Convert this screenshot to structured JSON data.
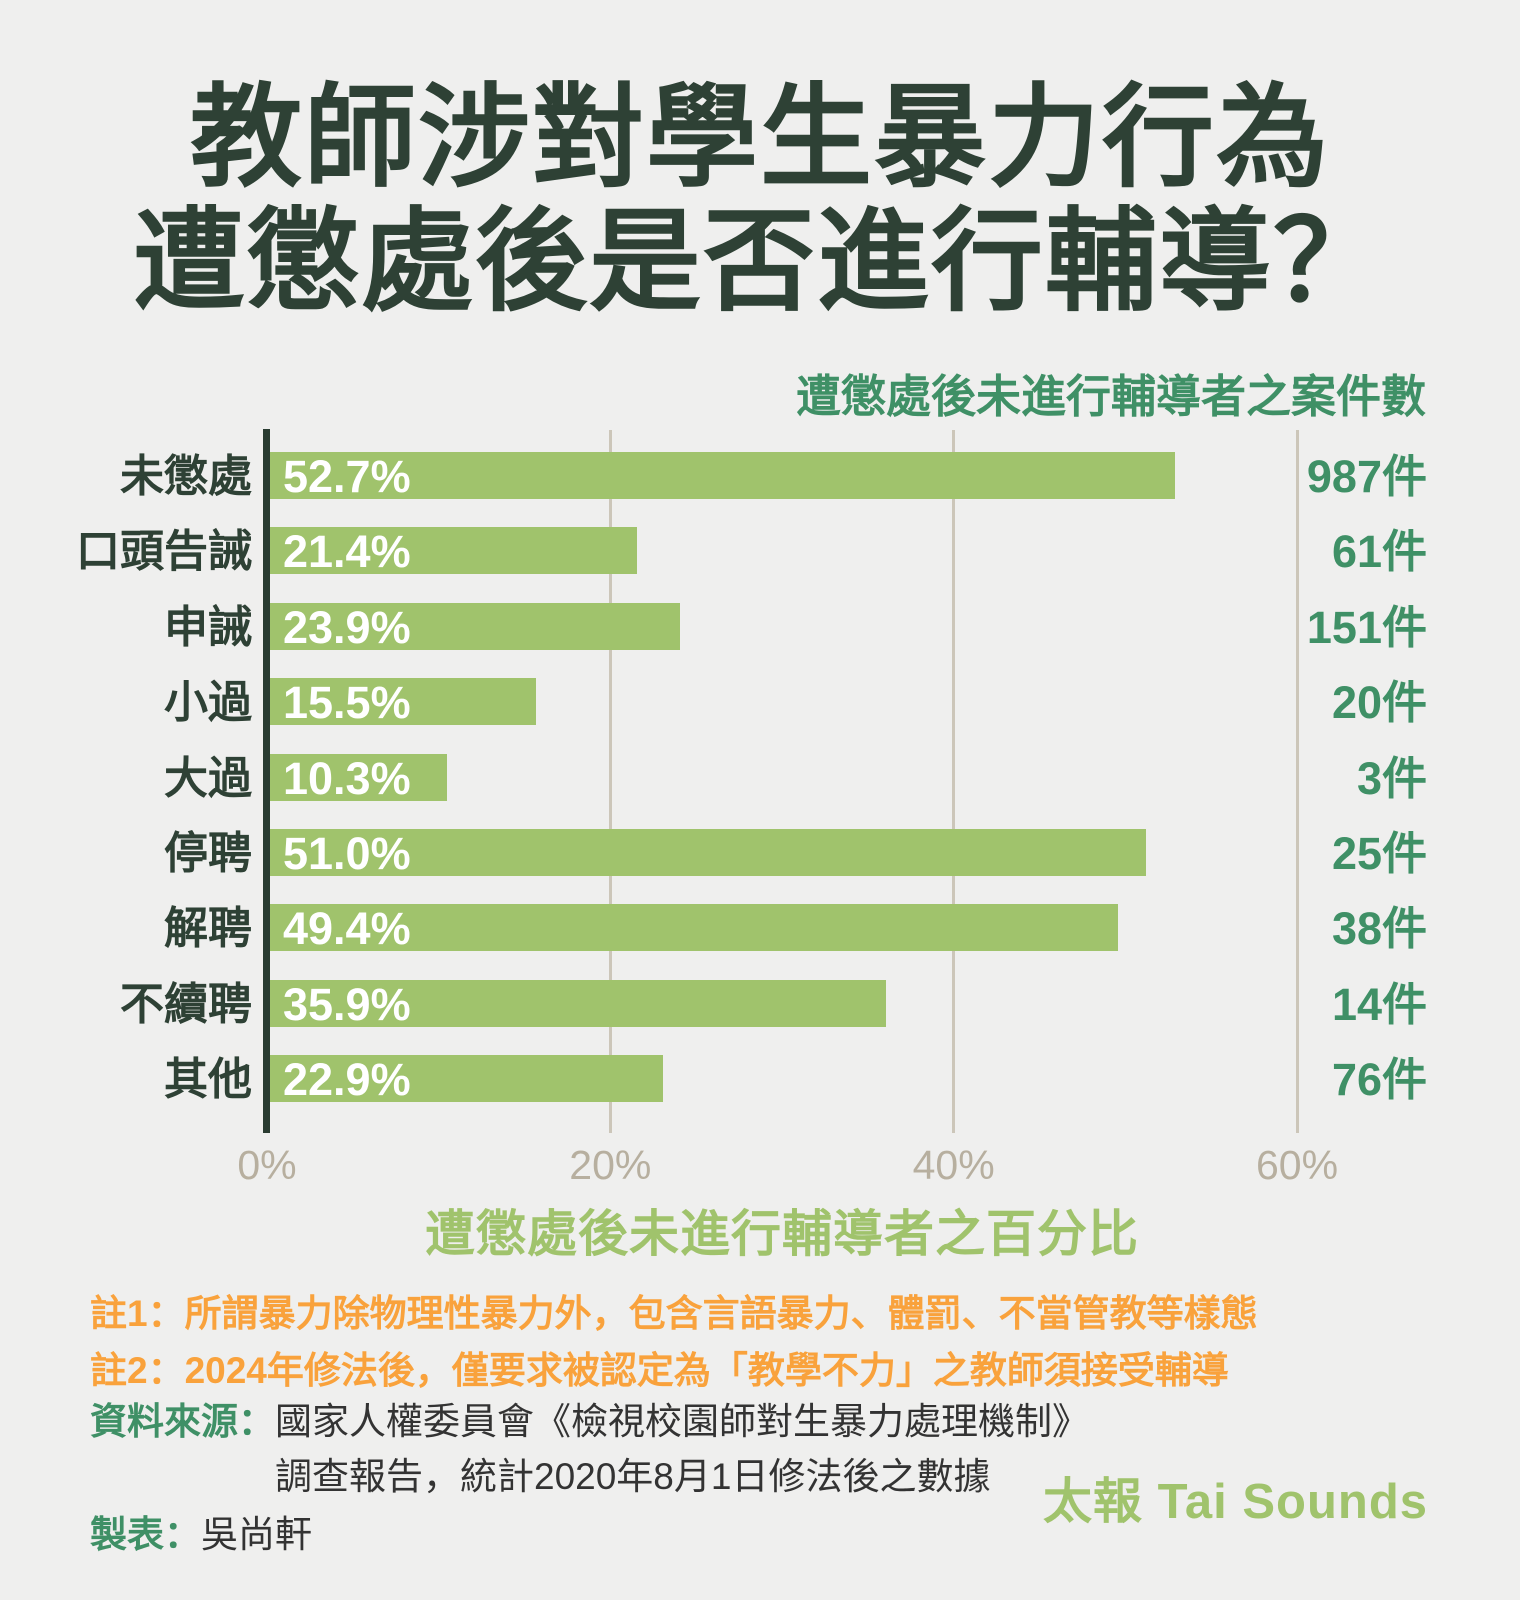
{
  "title": {
    "line1": "教師涉對學生暴力行為",
    "line2": "遭懲處後是否進行輔導？"
  },
  "chart_data": {
    "type": "bar",
    "orientation": "horizontal",
    "title": "教師涉對學生暴力行為遭懲處後是否進行輔導？",
    "right_axis_title": "遭懲處後未進行輔導者之案件數",
    "xlabel": "遭懲處後未進行輔導者之百分比",
    "xlim": [
      0,
      60
    ],
    "x_ticks": [
      "0%",
      "20%",
      "40%",
      "60%"
    ],
    "grid": true,
    "legend_position": "none",
    "categories": [
      "未懲處",
      "口頭告誡",
      "申誡",
      "小過",
      "大過",
      "停聘",
      "解聘",
      "不續聘",
      "其他"
    ],
    "series": [
      {
        "name": "遭懲處後未進行輔導者之百分比",
        "values": [
          52.7,
          21.4,
          23.9,
          15.5,
          10.3,
          51.0,
          49.4,
          35.9,
          22.9
        ],
        "labels": [
          "52.7%",
          "21.4%",
          "23.9%",
          "15.5%",
          "10.3%",
          "51.0%",
          "49.4%",
          "35.9%",
          "22.9%"
        ]
      },
      {
        "name": "遭懲處後未進行輔導者之案件數",
        "values": [
          987,
          61,
          151,
          20,
          3,
          25,
          38,
          14,
          76
        ],
        "labels": [
          "987件",
          "61件",
          "151件",
          "20件",
          "3件",
          "25件",
          "38件",
          "14件",
          "76件"
        ]
      }
    ],
    "bar_color": "#a0c36c"
  },
  "notes": {
    "note1": "註1：所謂暴力除物理性暴力外，包含言語暴力、體罰、不當管教等樣態",
    "note2": "註2：2024年修法後，僅要求被認定為「教學不力」之教師須接受輔導"
  },
  "source": {
    "label": "資料來源：",
    "line1": "國家人權委員會《檢視校園師對生暴力處理機制》",
    "line2": "調查報告，統計2020年8月1日修法後之數據"
  },
  "credit": {
    "label": "製表：",
    "name": "吳尚軒"
  },
  "logo": {
    "text": "太報 Tai Sounds"
  },
  "colors": {
    "background": "#efefee",
    "title": "#2e4135",
    "bar": "#a0c36c",
    "accent_green": "#3f9066",
    "orange": "#f9a23c",
    "tick": "#b7af9f",
    "gridline": "#ccc6b9",
    "axis": "#2a3c31",
    "body_text": "#333333",
    "bar_value_text": "#ffffff"
  }
}
